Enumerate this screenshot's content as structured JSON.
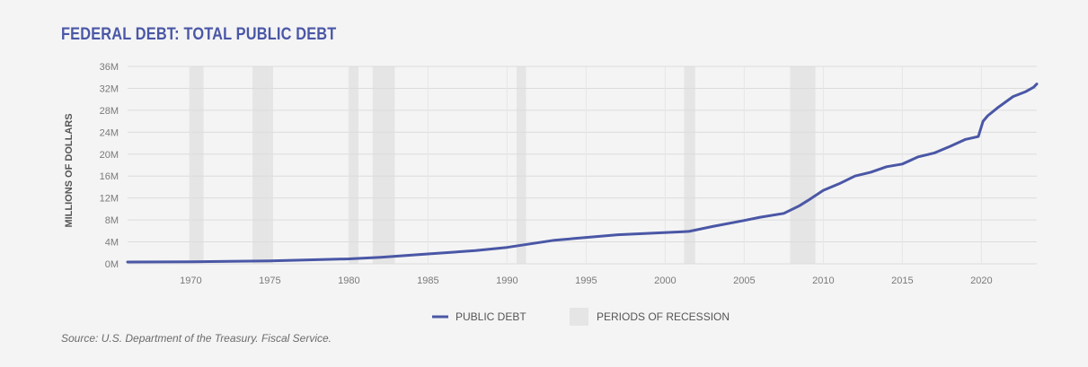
{
  "title": "FEDERAL DEBT: TOTAL PUBLIC DEBT",
  "source": "Source: U.S. Department of the Treasury. Fiscal Service.",
  "colors": {
    "title": "#4a57a6",
    "line": "#4a57a6",
    "recession": "#e5e5e5",
    "grid": "#dcdcdc"
  },
  "chart_data": {
    "type": "line",
    "title": "FEDERAL DEBT: TOTAL PUBLIC DEBT",
    "ylabel": "MILLIONS OF DOLLARS",
    "xlabel": "",
    "xlim": [
      1966,
      2023.5
    ],
    "ylim": [
      0,
      36
    ],
    "y_ticks": [
      "0M",
      "4M",
      "8M",
      "12M",
      "16M",
      "20M",
      "24M",
      "28M",
      "32M",
      "36M"
    ],
    "x_ticks": [
      "1970",
      "1975",
      "1980",
      "1985",
      "1990",
      "1995",
      "2000",
      "2005",
      "2010",
      "2015",
      "2020"
    ],
    "grid": true,
    "legend": {
      "placement": "bottom-center",
      "entries": [
        "PUBLIC DEBT",
        "PERIODS OF RECESSION"
      ]
    },
    "series": [
      {
        "name": "PUBLIC DEBT",
        "x": [
          1966,
          1970,
          1975,
          1980,
          1982,
          1985,
          1988,
          1990,
          1993,
          1997,
          2001.5,
          2003,
          2005,
          2006,
          2007.5,
          2008.5,
          2009,
          2010,
          2011,
          2012,
          2013,
          2014,
          2015,
          2016,
          2017,
          2018,
          2019,
          2019.8,
          2020.1,
          2020.4,
          2021,
          2022,
          2022.8,
          2023.3,
          2023.5
        ],
        "y": [
          0.32,
          0.37,
          0.53,
          0.9,
          1.2,
          1.8,
          2.4,
          3.0,
          4.3,
          5.3,
          5.9,
          6.8,
          7.9,
          8.5,
          9.2,
          10.6,
          11.5,
          13.4,
          14.6,
          16.0,
          16.7,
          17.7,
          18.2,
          19.5,
          20.2,
          21.4,
          22.7,
          23.2,
          26.0,
          27.0,
          28.4,
          30.5,
          31.4,
          32.2,
          32.8
        ]
      }
    ],
    "recessions": [
      [
        1969.9,
        1970.8
      ],
      [
        1973.9,
        1975.2
      ],
      [
        1980.0,
        1980.6
      ],
      [
        1981.5,
        1982.9
      ],
      [
        1990.6,
        1991.2
      ],
      [
        2001.2,
        2001.9
      ],
      [
        2007.9,
        2009.5
      ]
    ]
  }
}
